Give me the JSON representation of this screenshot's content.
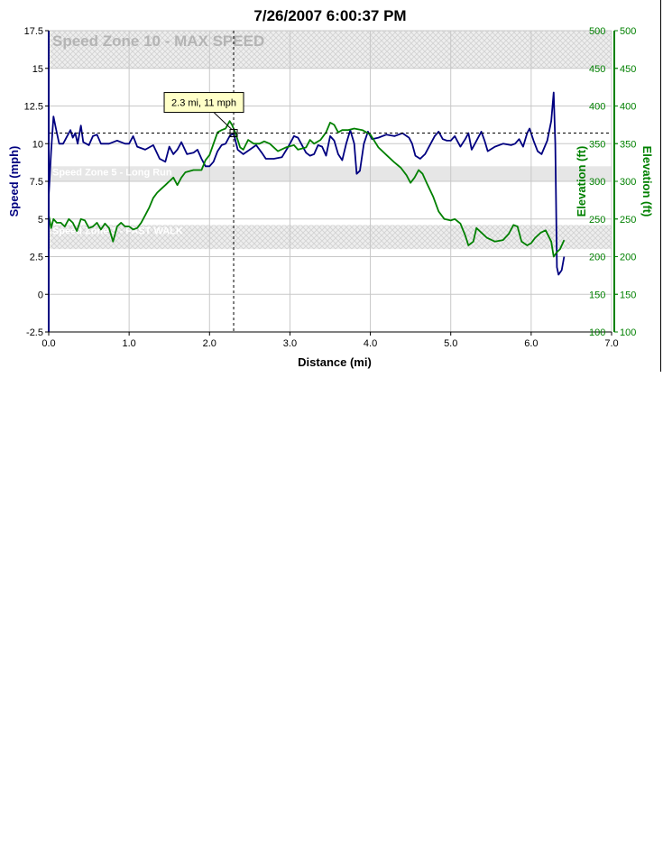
{
  "chart_data": {
    "type": "line",
    "title": "7/26/2007 6:00:37 PM",
    "xlabel": "Distance (mi)",
    "ylabel": "Speed (mph)",
    "y2label": "Elevation (ft)",
    "y3label": "Elevation (ft)",
    "xlim": [
      0,
      7
    ],
    "ylim": [
      -2.5,
      17.5
    ],
    "y2lim": [
      100,
      500
    ],
    "x_ticks": [
      "0.0",
      "1.0",
      "2.0",
      "3.0",
      "4.0",
      "5.0",
      "6.0",
      "7.0"
    ],
    "y_ticks": [
      "-2.5",
      "0",
      "2.5",
      "5",
      "7.5",
      "10",
      "12.5",
      "15",
      "17.5"
    ],
    "y2_ticks": [
      "100",
      "150",
      "200",
      "250",
      "300",
      "350",
      "400",
      "450",
      "500"
    ],
    "grid": true,
    "colors": {
      "speed": "#000080",
      "elevation": "#008000",
      "zone_fill": "#e6e6e6",
      "zone_text": "#b4b4b4"
    },
    "zones": [
      {
        "label": "Speed Zone 10 - MAX SPEED",
        "y_from": 15,
        "y_to": 17.5,
        "hatched": true
      },
      {
        "label": "Speed Zone 5 - Long Run",
        "y_from": 7.5,
        "y_to": 8.5,
        "hatched": false
      },
      {
        "label": "Speed Zone 3 - FAST WALK",
        "y_from": 3.0,
        "y_to": 4.6,
        "hatched": true
      }
    ],
    "cursor": {
      "x": 2.3,
      "y": 10.7,
      "label": "2.3 mi, 11 mph"
    },
    "series": [
      {
        "axis": "speed",
        "points": [
          [
            0.0,
            6.5
          ],
          [
            0.03,
            9.5
          ],
          [
            0.06,
            11.8
          ],
          [
            0.09,
            11.0
          ],
          [
            0.13,
            10.0
          ],
          [
            0.18,
            10.0
          ],
          [
            0.22,
            10.4
          ],
          [
            0.27,
            10.9
          ],
          [
            0.3,
            10.4
          ],
          [
            0.33,
            10.7
          ],
          [
            0.36,
            10.0
          ],
          [
            0.4,
            11.2
          ],
          [
            0.43,
            10.1
          ],
          [
            0.5,
            9.9
          ],
          [
            0.55,
            10.5
          ],
          [
            0.6,
            10.6
          ],
          [
            0.65,
            10.0
          ],
          [
            0.75,
            10.0
          ],
          [
            0.85,
            10.2
          ],
          [
            0.95,
            10.0
          ],
          [
            1.0,
            10.0
          ],
          [
            1.05,
            10.5
          ],
          [
            1.1,
            9.8
          ],
          [
            1.2,
            9.6
          ],
          [
            1.3,
            9.9
          ],
          [
            1.38,
            9.0
          ],
          [
            1.45,
            8.8
          ],
          [
            1.5,
            9.8
          ],
          [
            1.55,
            9.3
          ],
          [
            1.6,
            9.6
          ],
          [
            1.65,
            10.1
          ],
          [
            1.72,
            9.3
          ],
          [
            1.8,
            9.4
          ],
          [
            1.85,
            9.6
          ],
          [
            1.9,
            9.0
          ],
          [
            1.95,
            8.5
          ],
          [
            2.0,
            8.5
          ],
          [
            2.05,
            8.8
          ],
          [
            2.1,
            9.5
          ],
          [
            2.15,
            9.9
          ],
          [
            2.2,
            10.0
          ],
          [
            2.25,
            10.5
          ],
          [
            2.3,
            10.7
          ],
          [
            2.35,
            9.6
          ],
          [
            2.42,
            9.3
          ],
          [
            2.5,
            9.6
          ],
          [
            2.58,
            9.9
          ],
          [
            2.65,
            9.4
          ],
          [
            2.7,
            9.0
          ],
          [
            2.8,
            9.0
          ],
          [
            2.9,
            9.1
          ],
          [
            2.98,
            9.8
          ],
          [
            3.05,
            10.5
          ],
          [
            3.1,
            10.4
          ],
          [
            3.15,
            9.9
          ],
          [
            3.2,
            9.4
          ],
          [
            3.25,
            9.2
          ],
          [
            3.3,
            9.3
          ],
          [
            3.35,
            9.9
          ],
          [
            3.4,
            9.8
          ],
          [
            3.45,
            9.2
          ],
          [
            3.5,
            10.5
          ],
          [
            3.55,
            10.2
          ],
          [
            3.6,
            9.3
          ],
          [
            3.65,
            8.9
          ],
          [
            3.7,
            10.0
          ],
          [
            3.75,
            10.9
          ],
          [
            3.8,
            10.0
          ],
          [
            3.83,
            8.0
          ],
          [
            3.87,
            8.2
          ],
          [
            3.92,
            10.0
          ],
          [
            3.97,
            10.8
          ],
          [
            4.02,
            10.3
          ],
          [
            4.1,
            10.4
          ],
          [
            4.2,
            10.6
          ],
          [
            4.3,
            10.5
          ],
          [
            4.4,
            10.7
          ],
          [
            4.48,
            10.4
          ],
          [
            4.52,
            10.0
          ],
          [
            4.56,
            9.2
          ],
          [
            4.62,
            9.0
          ],
          [
            4.68,
            9.3
          ],
          [
            4.75,
            10.0
          ],
          [
            4.8,
            10.5
          ],
          [
            4.85,
            10.8
          ],
          [
            4.9,
            10.3
          ],
          [
            4.95,
            10.2
          ],
          [
            5.0,
            10.2
          ],
          [
            5.05,
            10.5
          ],
          [
            5.08,
            10.2
          ],
          [
            5.12,
            9.8
          ],
          [
            5.18,
            10.3
          ],
          [
            5.22,
            10.7
          ],
          [
            5.26,
            9.6
          ],
          [
            5.3,
            10.0
          ],
          [
            5.38,
            10.8
          ],
          [
            5.42,
            10.2
          ],
          [
            5.46,
            9.5
          ],
          [
            5.55,
            9.8
          ],
          [
            5.65,
            10.0
          ],
          [
            5.75,
            9.9
          ],
          [
            5.8,
            10.0
          ],
          [
            5.85,
            10.3
          ],
          [
            5.9,
            9.8
          ],
          [
            5.95,
            10.7
          ],
          [
            5.98,
            11.0
          ],
          [
            6.03,
            10.2
          ],
          [
            6.08,
            9.5
          ],
          [
            6.13,
            9.3
          ],
          [
            6.2,
            10.2
          ],
          [
            6.25,
            11.5
          ],
          [
            6.28,
            13.4
          ],
          [
            6.3,
            10.0
          ],
          [
            6.32,
            1.8
          ],
          [
            6.34,
            1.3
          ],
          [
            6.38,
            1.6
          ],
          [
            6.41,
            2.5
          ]
        ]
      },
      {
        "axis": "elevation",
        "points": [
          [
            0.0,
            255
          ],
          [
            0.03,
            238
          ],
          [
            0.06,
            250
          ],
          [
            0.1,
            245
          ],
          [
            0.15,
            245
          ],
          [
            0.2,
            240
          ],
          [
            0.25,
            250
          ],
          [
            0.3,
            245
          ],
          [
            0.35,
            234
          ],
          [
            0.4,
            250
          ],
          [
            0.45,
            248
          ],
          [
            0.5,
            238
          ],
          [
            0.55,
            240
          ],
          [
            0.6,
            245
          ],
          [
            0.65,
            236
          ],
          [
            0.7,
            244
          ],
          [
            0.75,
            238
          ],
          [
            0.8,
            220
          ],
          [
            0.85,
            240
          ],
          [
            0.9,
            245
          ],
          [
            0.95,
            240
          ],
          [
            1.0,
            240
          ],
          [
            1.05,
            236
          ],
          [
            1.1,
            238
          ],
          [
            1.15,
            245
          ],
          [
            1.2,
            255
          ],
          [
            1.25,
            265
          ],
          [
            1.3,
            278
          ],
          [
            1.35,
            285
          ],
          [
            1.4,
            290
          ],
          [
            1.45,
            295
          ],
          [
            1.5,
            300
          ],
          [
            1.55,
            305
          ],
          [
            1.6,
            295
          ],
          [
            1.65,
            305
          ],
          [
            1.7,
            312
          ],
          [
            1.8,
            315
          ],
          [
            1.9,
            315
          ],
          [
            1.95,
            328
          ],
          [
            2.0,
            335
          ],
          [
            2.05,
            350
          ],
          [
            2.1,
            365
          ],
          [
            2.15,
            368
          ],
          [
            2.2,
            370
          ],
          [
            2.25,
            380
          ],
          [
            2.28,
            375
          ],
          [
            2.32,
            365
          ],
          [
            2.38,
            345
          ],
          [
            2.42,
            342
          ],
          [
            2.48,
            355
          ],
          [
            2.55,
            350
          ],
          [
            2.62,
            350
          ],
          [
            2.68,
            353
          ],
          [
            2.75,
            350
          ],
          [
            2.85,
            340
          ],
          [
            2.95,
            345
          ],
          [
            3.05,
            348
          ],
          [
            3.1,
            342
          ],
          [
            3.2,
            345
          ],
          [
            3.25,
            355
          ],
          [
            3.3,
            350
          ],
          [
            3.38,
            355
          ],
          [
            3.45,
            365
          ],
          [
            3.5,
            378
          ],
          [
            3.55,
            375
          ],
          [
            3.6,
            365
          ],
          [
            3.65,
            368
          ],
          [
            3.72,
            368
          ],
          [
            3.8,
            370
          ],
          [
            3.9,
            368
          ],
          [
            4.0,
            362
          ],
          [
            4.1,
            345
          ],
          [
            4.2,
            335
          ],
          [
            4.3,
            325
          ],
          [
            4.38,
            318
          ],
          [
            4.45,
            308
          ],
          [
            4.5,
            298
          ],
          [
            4.55,
            305
          ],
          [
            4.6,
            315
          ],
          [
            4.65,
            310
          ],
          [
            4.7,
            298
          ],
          [
            4.78,
            280
          ],
          [
            4.85,
            260
          ],
          [
            4.92,
            250
          ],
          [
            5.0,
            248
          ],
          [
            5.05,
            250
          ],
          [
            5.12,
            244
          ],
          [
            5.18,
            228
          ],
          [
            5.22,
            215
          ],
          [
            5.28,
            220
          ],
          [
            5.32,
            238
          ],
          [
            5.38,
            232
          ],
          [
            5.45,
            225
          ],
          [
            5.55,
            220
          ],
          [
            5.65,
            222
          ],
          [
            5.72,
            230
          ],
          [
            5.78,
            242
          ],
          [
            5.83,
            240
          ],
          [
            5.88,
            220
          ],
          [
            5.95,
            215
          ],
          [
            6.0,
            218
          ],
          [
            6.05,
            225
          ],
          [
            6.12,
            232
          ],
          [
            6.18,
            235
          ],
          [
            6.25,
            220
          ],
          [
            6.28,
            200
          ],
          [
            6.32,
            206
          ],
          [
            6.36,
            210
          ],
          [
            6.41,
            222
          ]
        ]
      }
    ]
  }
}
